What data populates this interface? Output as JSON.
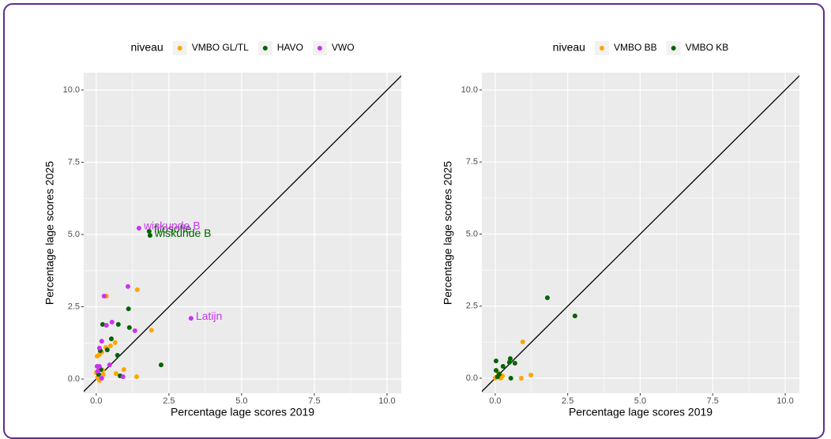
{
  "chart_data": [
    {
      "type": "scatter",
      "legend_title": "niveau",
      "legend_position": "top",
      "grid": true,
      "identity_line": true,
      "x_label": "Percentage lage scores 2019",
      "y_label": "Percentage lage scores 2025",
      "xlim": [
        -0.43,
        10.49
      ],
      "ylim": [
        -0.49,
        10.6
      ],
      "xticks": [
        {
          "value": 0,
          "label": "0.0"
        },
        {
          "value": 2.5,
          "label": "2.5"
        },
        {
          "value": 5,
          "label": "5.0"
        },
        {
          "value": 7.5,
          "label": "7.5"
        },
        {
          "value": 10,
          "label": "10.0"
        }
      ],
      "yticks": [
        {
          "value": 0,
          "label": "0.0"
        },
        {
          "value": 2.5,
          "label": "2.5"
        },
        {
          "value": 5,
          "label": "5.0"
        },
        {
          "value": 7.5,
          "label": "7.5"
        },
        {
          "value": 10,
          "label": "10.0"
        }
      ],
      "series": [
        {
          "name": "VMBO GL/TL",
          "color": "#ffa500",
          "x": [
            1.41,
            0.35,
            1.9,
            0.65,
            0.49,
            0.33,
            0.19,
            0.03,
            0.11,
            0.95,
            0.68,
            1.39,
            0.08,
            0.0,
            0.05,
            0.24,
            0.11,
            0.22
          ],
          "values": [
            3.09,
            2.87,
            1.69,
            1.26,
            1.15,
            1.09,
            0.93,
            0.79,
            0.85,
            0.33,
            0.19,
            0.08,
            0.41,
            0.22,
            0.05,
            0.16,
            -0.05,
            0.3
          ]
        },
        {
          "name": "HAVO",
          "color": "#006400",
          "x": [
            1.82,
            1.85,
            1.11,
            2.23,
            0.22,
            0.76,
            1.14,
            0.52,
            0.14,
            0.73,
            0.82,
            0.08,
            0.16,
            0.38
          ],
          "values": [
            5.11,
            4.97,
            2.43,
            0.49,
            1.89,
            1.89,
            1.78,
            1.39,
            0.98,
            0.82,
            0.11,
            0.16,
            0.33,
            1.01
          ],
          "point_labels": [
            "filosofie",
            "wiskunde B",
            null,
            null,
            null,
            null,
            null,
            null,
            null,
            null,
            null,
            null,
            null,
            null
          ]
        },
        {
          "name": "VWO",
          "color": "#c933f0",
          "x": [
            1.47,
            3.26,
            1.09,
            0.27,
            0.54,
            1.33,
            0.35,
            0.19,
            0.11,
            0.03,
            0.11,
            0.92,
            0.19,
            0.05,
            0.46
          ],
          "values": [
            5.22,
            2.1,
            3.2,
            2.87,
            1.97,
            1.67,
            1.86,
            1.31,
            1.07,
            0.44,
            0.44,
            0.08,
            0.03,
            0.27,
            0.49
          ],
          "point_labels": [
            "wiskunde B",
            "Latijn",
            null,
            null,
            null,
            null,
            null,
            null,
            null,
            null,
            null,
            null,
            null,
            null,
            null
          ]
        }
      ]
    },
    {
      "type": "scatter",
      "legend_title": "niveau",
      "legend_position": "top",
      "grid": true,
      "identity_line": true,
      "x_label": "Percentage lage scores 2019",
      "y_label": "Percentage lage scores 2025",
      "xlim": [
        -0.46,
        10.49
      ],
      "ylim": [
        -0.52,
        10.6
      ],
      "xticks": [
        {
          "value": 0,
          "label": "0.0"
        },
        {
          "value": 2.5,
          "label": "2.5"
        },
        {
          "value": 5,
          "label": "5.0"
        },
        {
          "value": 7.5,
          "label": "7.5"
        },
        {
          "value": 10,
          "label": "10.0"
        }
      ],
      "yticks": [
        {
          "value": 0,
          "label": "0.0"
        },
        {
          "value": 2.5,
          "label": "2.5"
        },
        {
          "value": 5,
          "label": "5.0"
        },
        {
          "value": 7.5,
          "label": "7.5"
        },
        {
          "value": 10,
          "label": "10.0"
        }
      ],
      "series": [
        {
          "name": "VMBO BB",
          "color": "#ffa500",
          "x": [
            0.95,
            1.23,
            0.9,
            0.19,
            0.05,
            0.25,
            0.11,
            0.0
          ],
          "values": [
            1.26,
            0.11,
            0.0,
            0.0,
            0.05,
            0.08,
            0.19,
            0.0
          ]
        },
        {
          "name": "VMBO KB",
          "color": "#006400",
          "x": [
            1.8,
            2.75,
            0.27,
            0.03,
            0.52,
            0.49,
            0.68,
            0.03,
            0.54,
            0.14,
            0.08
          ],
          "values": [
            2.79,
            2.16,
            0.41,
            0.6,
            0.68,
            0.55,
            0.52,
            0.27,
            0.0,
            0.14,
            0.05
          ]
        }
      ]
    }
  ]
}
